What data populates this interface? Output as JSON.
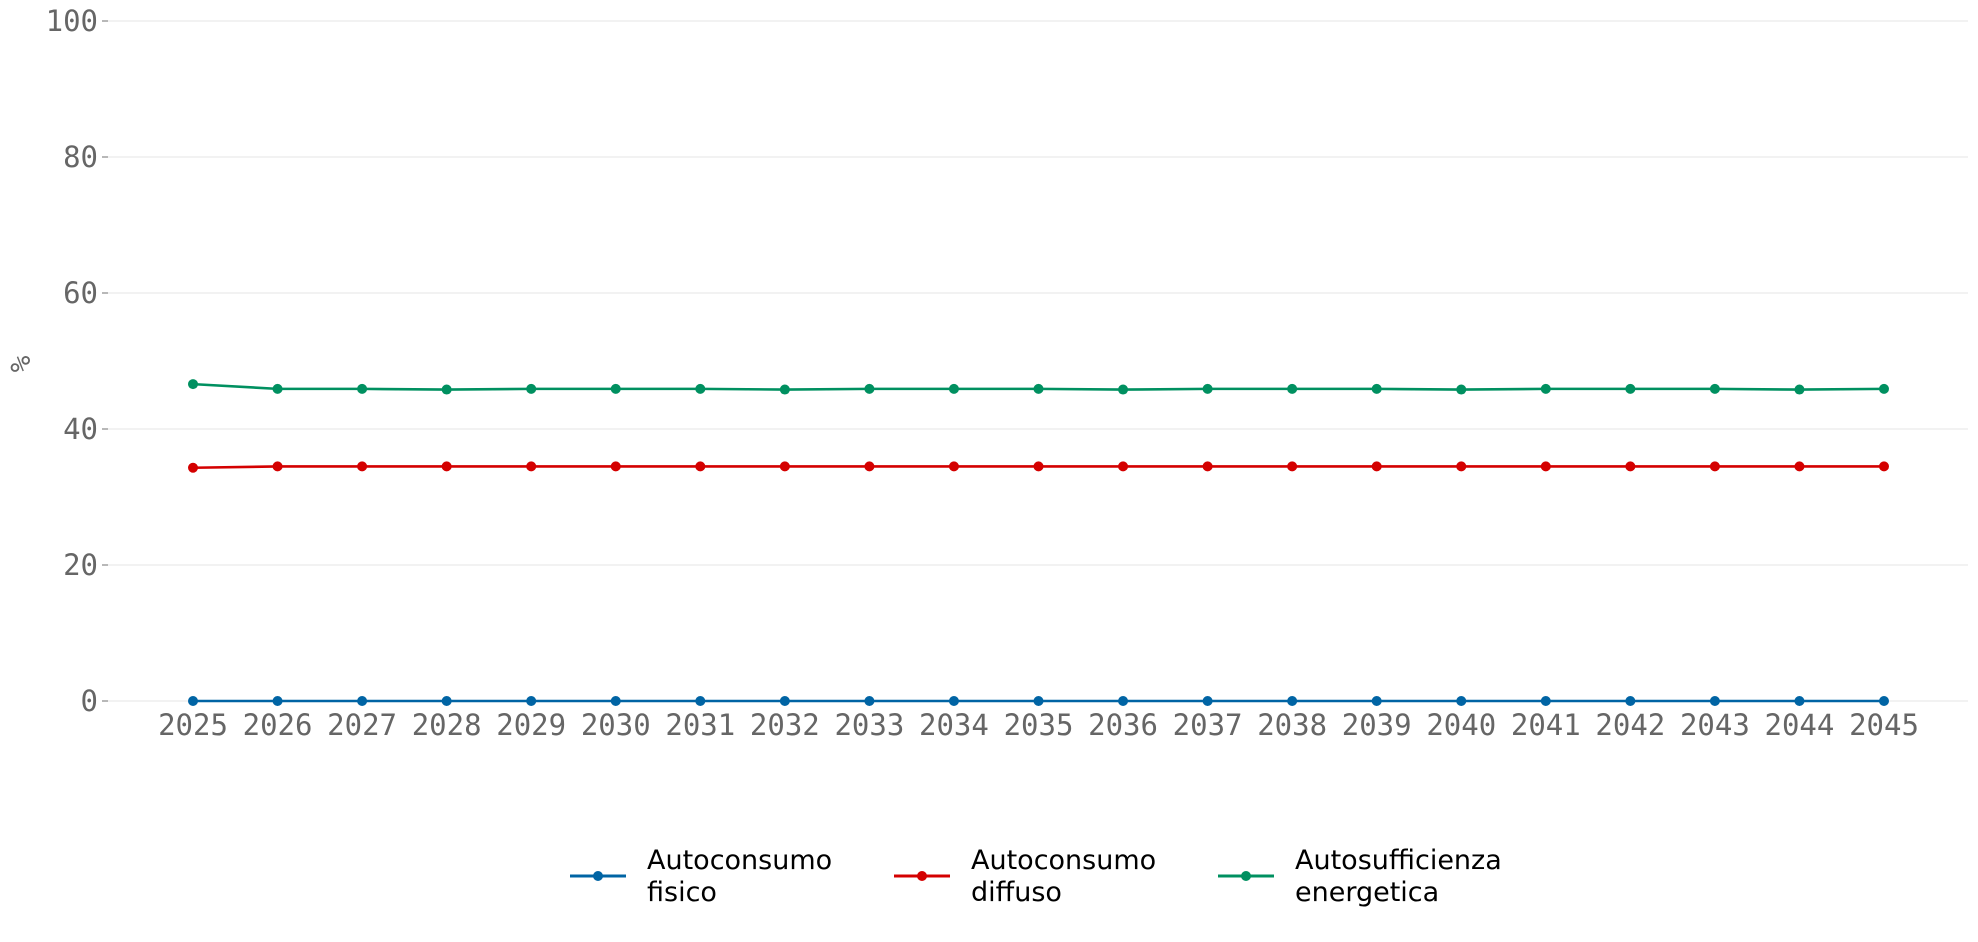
{
  "chart_data": {
    "type": "line",
    "title": "",
    "xlabel": "",
    "ylabel": "%",
    "ylim": [
      0,
      100
    ],
    "yticks": [
      "0",
      "20",
      "40",
      "60",
      "80",
      "100"
    ],
    "grid": "horizontal",
    "legend_position": "bottom-center",
    "x": [
      "2025",
      "2026",
      "2027",
      "2028",
      "2029",
      "2030",
      "2031",
      "2032",
      "2033",
      "2034",
      "2035",
      "2036",
      "2037",
      "2038",
      "2039",
      "2040",
      "2041",
      "2042",
      "2043",
      "2044",
      "2045"
    ],
    "series": [
      {
        "name": "Autoconsumo fisico",
        "name_lines": [
          "Autoconsumo",
          "fisico"
        ],
        "color": "#0064a4",
        "values": [
          0,
          0,
          0,
          0,
          0,
          0,
          0,
          0,
          0,
          0,
          0,
          0,
          0,
          0,
          0,
          0,
          0,
          0,
          0,
          0,
          0
        ]
      },
      {
        "name": "Autoconsumo diffuso",
        "name_lines": [
          "Autoconsumo",
          "diffuso"
        ],
        "color": "#d40000",
        "values": [
          34.3,
          34.5,
          34.5,
          34.5,
          34.5,
          34.5,
          34.5,
          34.5,
          34.5,
          34.5,
          34.5,
          34.5,
          34.5,
          34.5,
          34.5,
          34.5,
          34.5,
          34.5,
          34.5,
          34.5,
          34.5
        ]
      },
      {
        "name": "Autosufficienza energetica",
        "name_lines": [
          "Autosufficienza",
          "energetica"
        ],
        "color": "#009060",
        "values": [
          46.6,
          45.9,
          45.9,
          45.8,
          45.9,
          45.9,
          45.9,
          45.8,
          45.9,
          45.9,
          45.9,
          45.8,
          45.9,
          45.9,
          45.9,
          45.8,
          45.9,
          45.9,
          45.9,
          45.8,
          45.9
        ]
      }
    ]
  }
}
